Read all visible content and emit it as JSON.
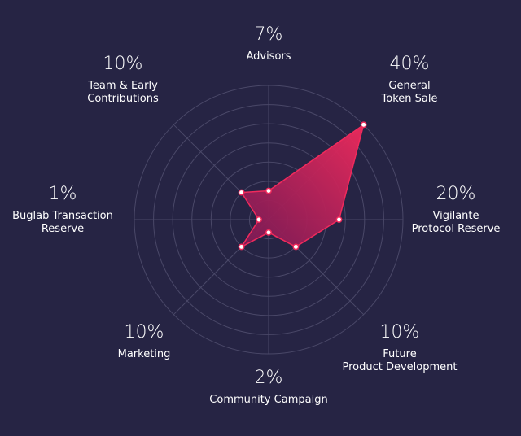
{
  "chart_data": {
    "type": "radar",
    "max_value": 40,
    "rings": 7,
    "categories": [
      {
        "name": [
          "Advisors"
        ],
        "value": 7,
        "label": "7%"
      },
      {
        "name": [
          "General",
          "Token Sale"
        ],
        "value": 40,
        "label": "40%"
      },
      {
        "name": [
          "Vigilante",
          "Protocol Reserve"
        ],
        "value": 20,
        "label": "20%"
      },
      {
        "name": [
          "Future",
          "Product Development"
        ],
        "value": 10,
        "label": "10%"
      },
      {
        "name": [
          "Community Campaign"
        ],
        "value": 2,
        "label": "2%"
      },
      {
        "name": [
          "Marketing"
        ],
        "value": 10,
        "label": "10%"
      },
      {
        "name": [
          "Buglab Transaction",
          "Reserve"
        ],
        "value": 1,
        "label": "1%"
      },
      {
        "name": [
          "Team & Early",
          "Contributions"
        ],
        "value": 10,
        "label": "10%"
      }
    ]
  },
  "colors": {
    "background": "#262444",
    "fill_start": "#f02a5c",
    "fill_end": "#7a1a55",
    "grid": "#4a4868",
    "text": "#ffffff"
  }
}
